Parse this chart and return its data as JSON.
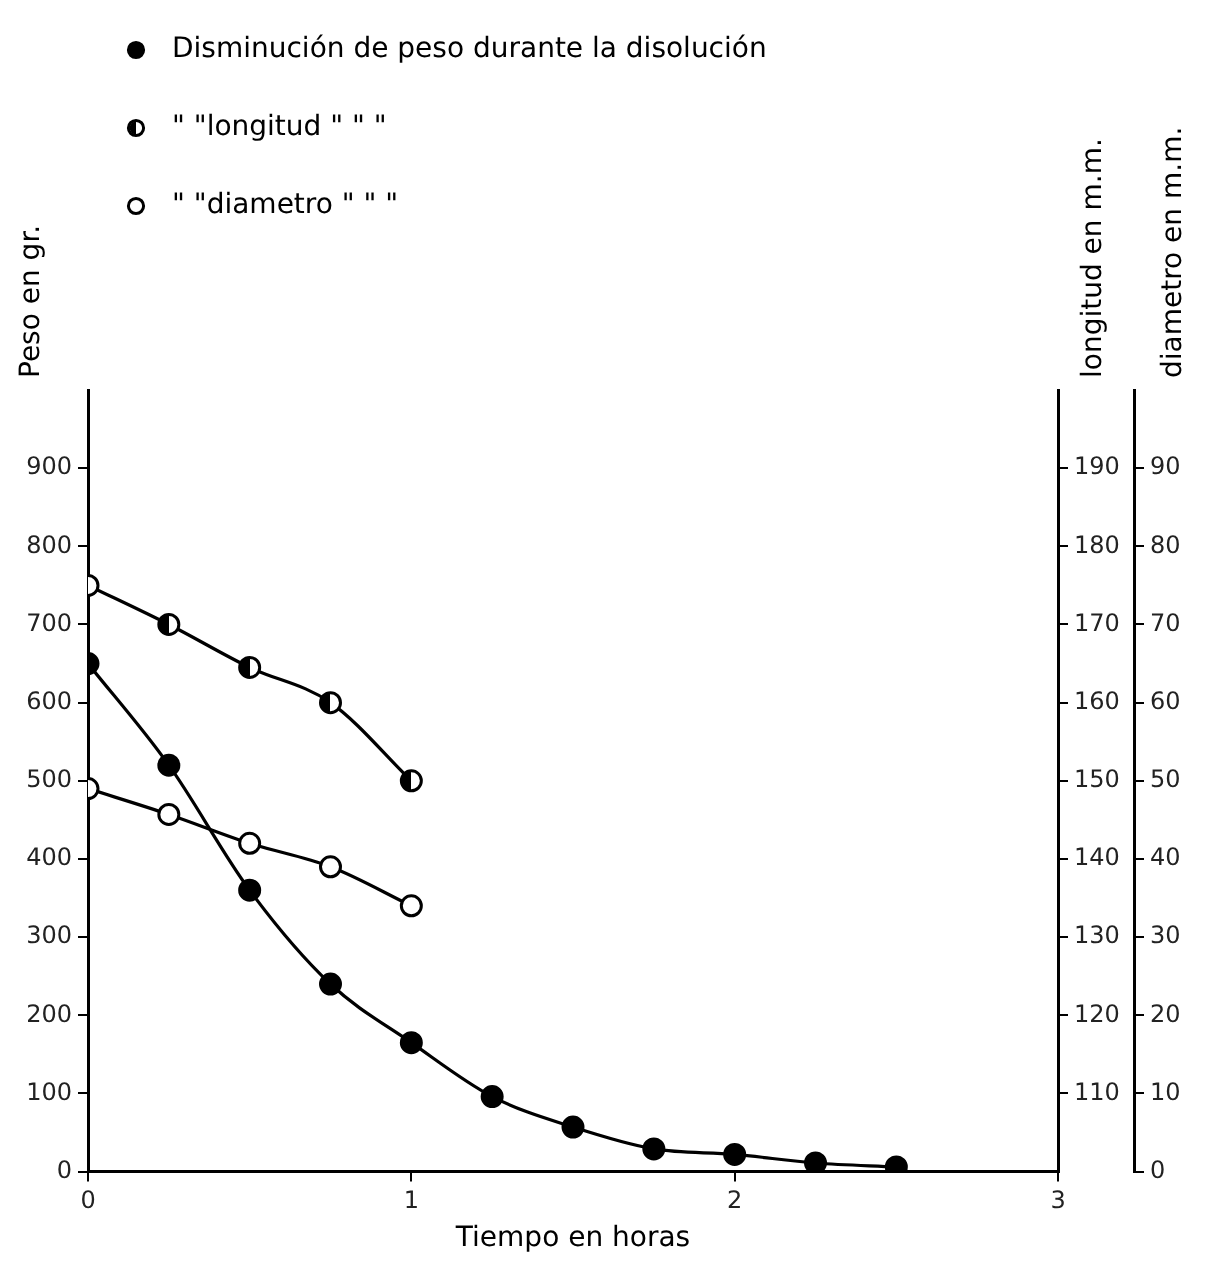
{
  "chart_data": {
    "type": "line",
    "xlabel": "Tiempo en horas",
    "ylabel": "Peso en gr.",
    "y2label": "longitud en m.m.",
    "y3label": "diametro en m.m.",
    "x": [
      0,
      0.25,
      0.5,
      0.75,
      1,
      1.25,
      1.5,
      1.75,
      2,
      2.25,
      2.5
    ],
    "series": [
      {
        "name": "Disminución de peso durante la disolución",
        "color": "#000000",
        "values": [
          650,
          520,
          360,
          240,
          165,
          96,
          57,
          29,
          22,
          11,
          6
        ]
      },
      {
        "name": "\" \"longitud \" \" \"",
        "color": "#000000",
        "axis": "y2",
        "x": [
          0,
          0.25,
          0.5,
          0.75,
          1
        ],
        "values": [
          175,
          170,
          164.5,
          160,
          150
        ]
      },
      {
        "name": "\" \"diametro \" \" \"",
        "color": "#000000",
        "axis": "y3",
        "x": [
          0,
          0.25,
          0.5,
          0.75,
          1
        ],
        "values": [
          49,
          45.7,
          42,
          39,
          34
        ]
      }
    ],
    "xlim": [
      0,
      3
    ],
    "xticks": [
      0,
      1,
      2,
      3
    ],
    "ylim": [
      0,
      1000
    ],
    "yticks": [
      0,
      100,
      200,
      300,
      400,
      500,
      600,
      700,
      800,
      900
    ],
    "y2lim": [
      100,
      200
    ],
    "y2ticks": [
      110,
      120,
      130,
      140,
      150,
      160,
      170,
      180,
      190
    ],
    "y3lim": [
      0,
      100
    ],
    "y3ticks": [
      0,
      10,
      20,
      30,
      40,
      50,
      60,
      70,
      80,
      90
    ],
    "grid": false,
    "legend": "top left",
    "marker": "circle",
    "line_style": "solid"
  }
}
